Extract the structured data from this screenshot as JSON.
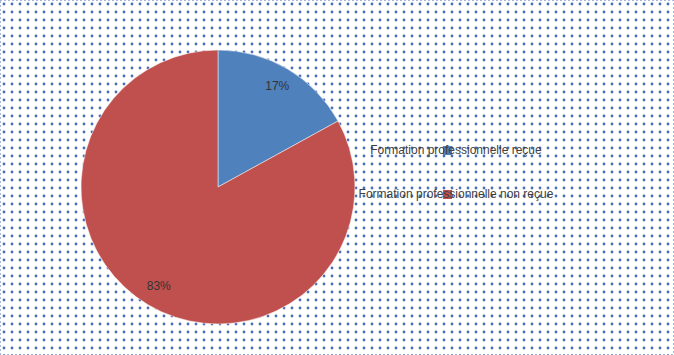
{
  "chart_data": {
    "type": "pie",
    "categories": [
      "Formation professionnelle reçue",
      "Formation professionnelle non reçue"
    ],
    "values": [
      17,
      83
    ],
    "value_labels": [
      "17%",
      "83%"
    ],
    "colors": [
      "#4f81bd",
      "#c0504d"
    ],
    "data_labels": true,
    "legend": "right"
  }
}
